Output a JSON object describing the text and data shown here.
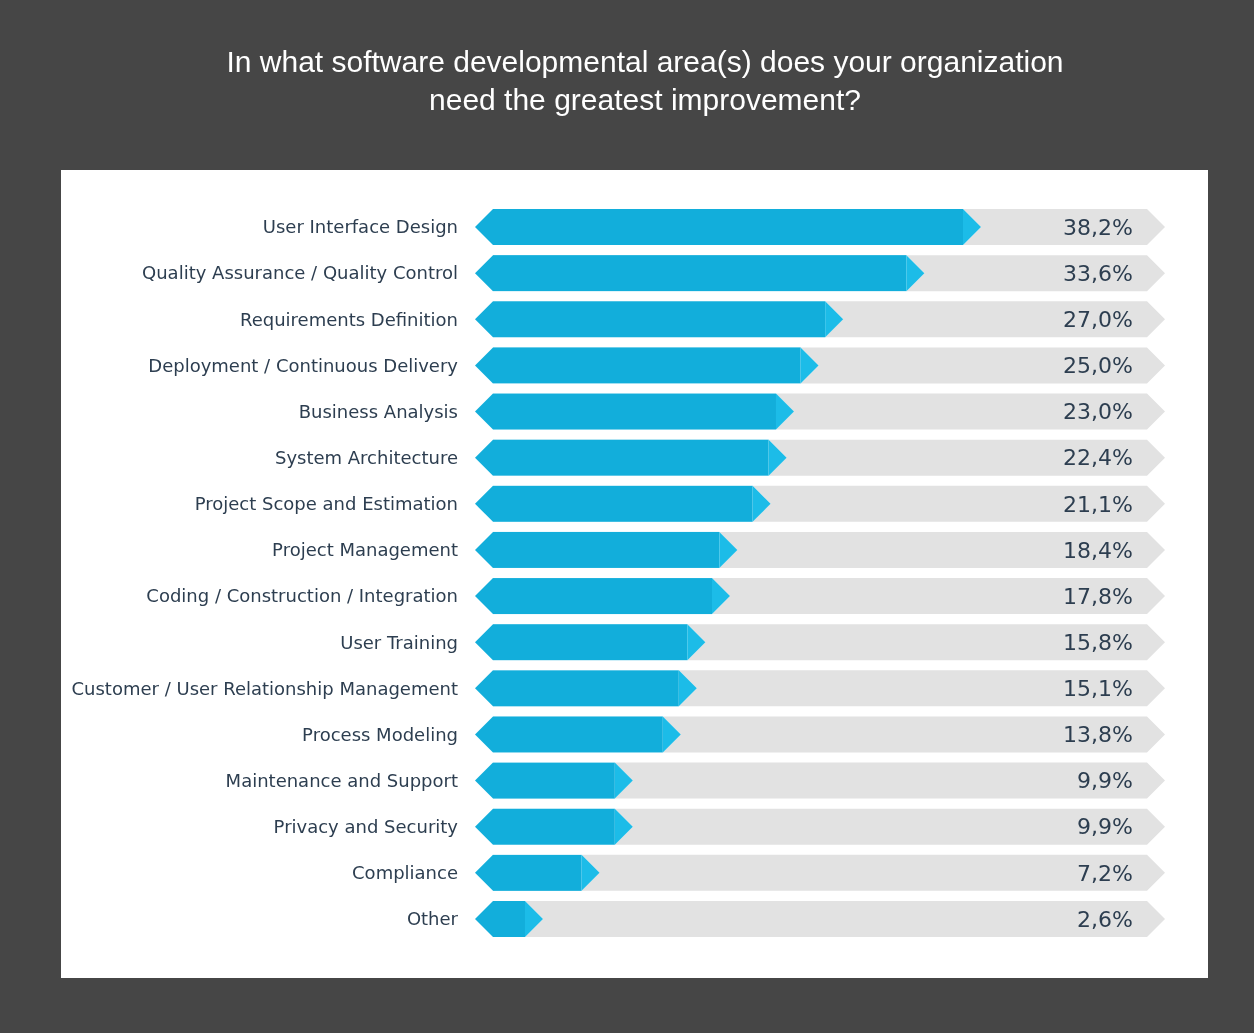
{
  "chart_data": {
    "type": "bar",
    "orientation": "horizontal",
    "title": "In what software developmental area(s) does your organization need the greatest improvement?",
    "categories": [
      "User Interface Design",
      "Quality Assurance / Quality Control",
      "Requirements Definition",
      "Deployment / Continuous Delivery",
      "Business Analysis",
      "System Architecture",
      "Project Scope and Estimation",
      "Project Management",
      "Coding / Construction / Integration",
      "User Training",
      "Customer / User Relationship Management",
      "Process Modeling",
      "Maintenance and Support",
      "Privacy and Security",
      "Compliance",
      "Other"
    ],
    "values": [
      38.2,
      33.6,
      27.0,
      25.0,
      23.0,
      22.4,
      21.1,
      18.4,
      17.8,
      15.8,
      15.1,
      13.8,
      9.9,
      9.9,
      7.2,
      2.6
    ],
    "value_labels": [
      "38,2%",
      "33,6%",
      "27,0%",
      "25,0%",
      "23,0%",
      "22,4%",
      "21,1%",
      "18,4%",
      "17,8%",
      "15,8%",
      "15,1%",
      "13,8%",
      "9,9%",
      "9,9%",
      "7,2%",
      "2,6%"
    ],
    "color": "#12aedb"
  }
}
